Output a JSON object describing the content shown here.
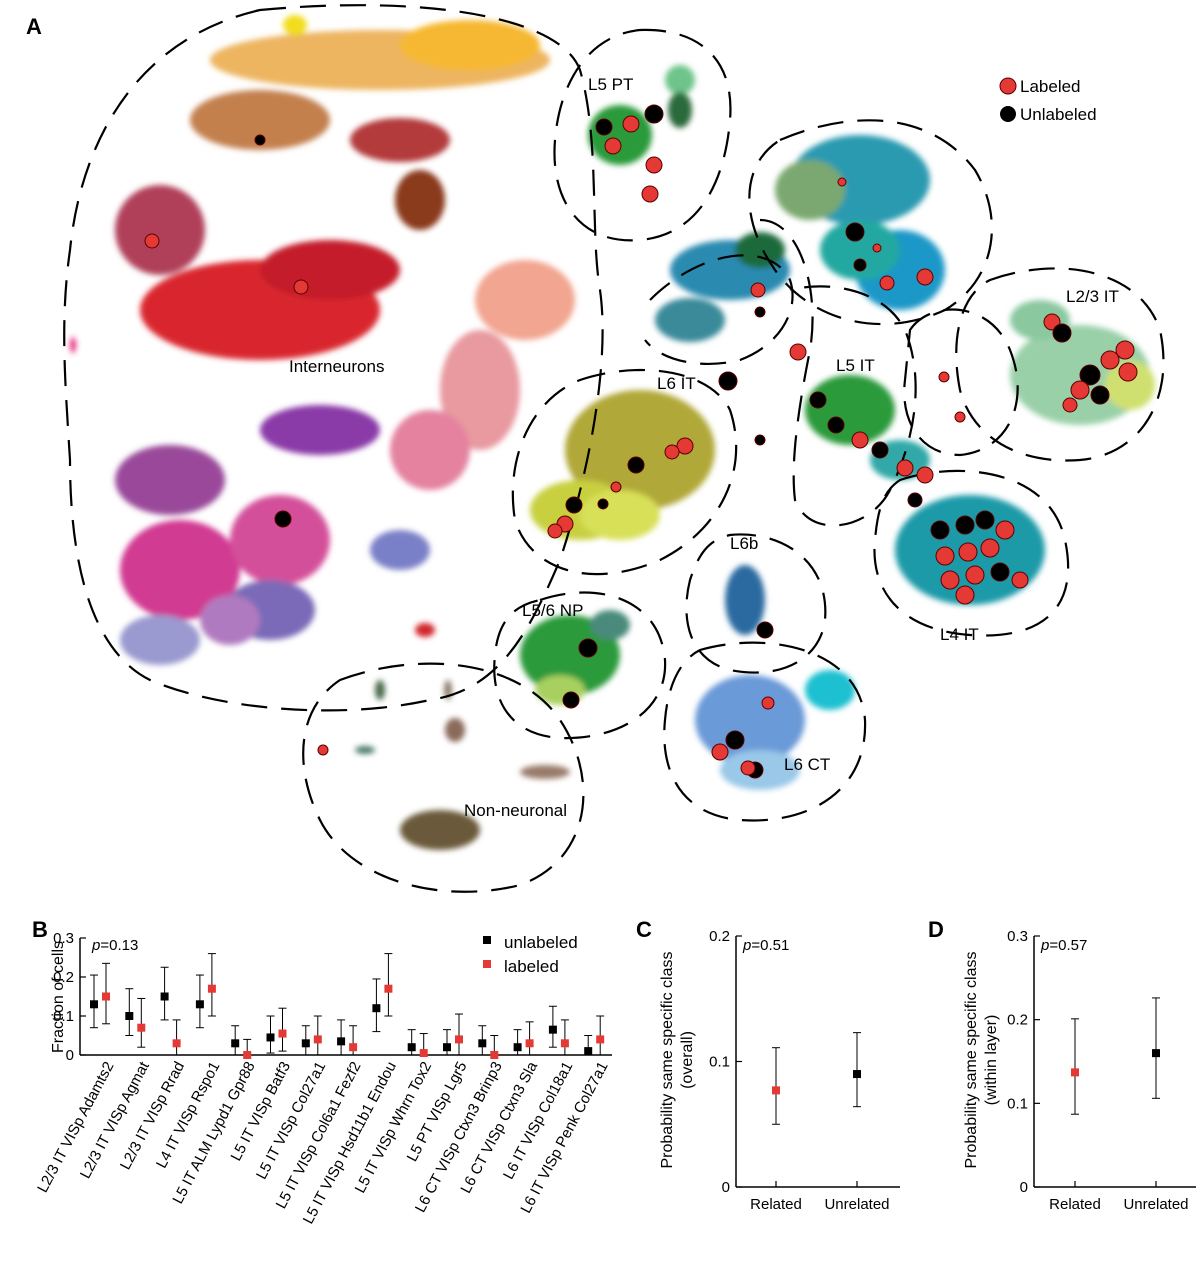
{
  "panels": {
    "A": {
      "letter": "A",
      "legend": [
        {
          "label": "Labeled",
          "color": "#e53935"
        },
        {
          "label": "Unlabeled",
          "color": "#000000"
        }
      ],
      "clusters": [
        "Interneurons",
        "L5 PT",
        "L6 IT",
        "L5 IT",
        "L2/3 IT",
        "L4 IT",
        "L6b",
        "L5/6 NP",
        "L6 CT",
        "Non-neuronal"
      ]
    },
    "B": {
      "letter": "B",
      "p_prefix": "p",
      "p_value": "=0.13"
    },
    "C": {
      "letter": "C",
      "p_prefix": "p",
      "p_value": "=0.51"
    },
    "D": {
      "letter": "D",
      "p_prefix": "p",
      "p_value": "=0.57"
    }
  },
  "colors": {
    "labeled": "#e53935",
    "unlabeled": "#000000"
  },
  "chart_data": [
    {
      "type": "scatter",
      "title": "",
      "note": "t-SNE embedding of transcriptomic cell types; cluster labels and legend only",
      "series": [
        {
          "name": "Labeled"
        },
        {
          "name": "Unlabeled"
        }
      ]
    },
    {
      "type": "scatter",
      "title": "",
      "ylabel": "Fraction of cells",
      "ylim": [
        0,
        0.3
      ],
      "yticks": [
        "0",
        "0.1",
        "0.2",
        "0.3"
      ],
      "categories": [
        "L2/3 IT VISp Adamts2",
        "L2/3 IT VISp Agmat",
        "L2/3 IT VISp Rrad",
        "L4 IT VISp Rspo1",
        "L5 IT ALM Lypd1 Gpr88",
        "L5 IT VISp Batf3",
        "L5 IT VISp Col27a1",
        "L5 IT VISp Col6a1 Fezf2",
        "L5 IT VISp Hsd11b1 Endou",
        "L5 IT VISp Whrn Tox2",
        "L5 PT VISp Lgr5",
        "L6 CT VISp Ctxn3 Brinp3",
        "L6 CT VISp Ctxn3 Sla",
        "L6 IT VISp Col18a1",
        "L6 IT VISp Penk Col27a1"
      ],
      "series": [
        {
          "name": "unlabeled",
          "color": "#000000",
          "values": [
            0.13,
            0.1,
            0.15,
            0.13,
            0.03,
            0.045,
            0.03,
            0.035,
            0.12,
            0.02,
            0.02,
            0.03,
            0.02,
            0.065,
            0.01
          ],
          "lower": [
            0.07,
            0.05,
            0.09,
            0.07,
            0.0,
            0.005,
            0.0,
            0.0,
            0.06,
            0.0,
            0.0,
            0.0,
            0.0,
            0.02,
            0.0
          ],
          "upper": [
            0.205,
            0.17,
            0.225,
            0.205,
            0.075,
            0.1,
            0.075,
            0.09,
            0.195,
            0.065,
            0.065,
            0.075,
            0.065,
            0.125,
            0.05
          ]
        },
        {
          "name": "labeled",
          "color": "#e53935",
          "values": [
            0.15,
            0.07,
            0.03,
            0.17,
            0.0,
            0.055,
            0.04,
            0.02,
            0.17,
            0.005,
            0.04,
            0.0,
            0.03,
            0.03,
            0.04
          ],
          "lower": [
            0.08,
            0.02,
            0.0,
            0.1,
            0.0,
            0.01,
            0.0,
            0.0,
            0.1,
            0.0,
            0.0,
            0.0,
            0.0,
            0.0,
            0.0
          ],
          "upper": [
            0.235,
            0.145,
            0.09,
            0.26,
            0.04,
            0.12,
            0.1,
            0.075,
            0.26,
            0.055,
            0.105,
            0.05,
            0.085,
            0.09,
            0.1
          ]
        }
      ],
      "legend": [
        "unlabeled",
        "labeled"
      ]
    },
    {
      "type": "scatter",
      "title": "",
      "ylabel": "Probability same specific class (overall)",
      "ylim": [
        0,
        0.2
      ],
      "yticks": [
        "0",
        "0.1",
        "0.2"
      ],
      "categories": [
        "Related",
        "Unrelated"
      ],
      "points": [
        {
          "category": "Related",
          "value": 0.077,
          "lower": 0.05,
          "upper": 0.111,
          "color": "#e53935"
        },
        {
          "category": "Unrelated",
          "value": 0.09,
          "lower": 0.064,
          "upper": 0.123,
          "color": "#000000"
        }
      ]
    },
    {
      "type": "scatter",
      "title": "",
      "ylabel": "Probability same specific class (within layer)",
      "ylim": [
        0,
        0.3
      ],
      "yticks": [
        "0",
        "0.1",
        "0.2",
        "0.3"
      ],
      "categories": [
        "Related",
        "Unrelated"
      ],
      "points": [
        {
          "category": "Related",
          "value": 0.137,
          "lower": 0.087,
          "upper": 0.201,
          "color": "#e53935"
        },
        {
          "category": "Unrelated",
          "value": 0.16,
          "lower": 0.106,
          "upper": 0.226,
          "color": "#000000"
        }
      ]
    }
  ]
}
